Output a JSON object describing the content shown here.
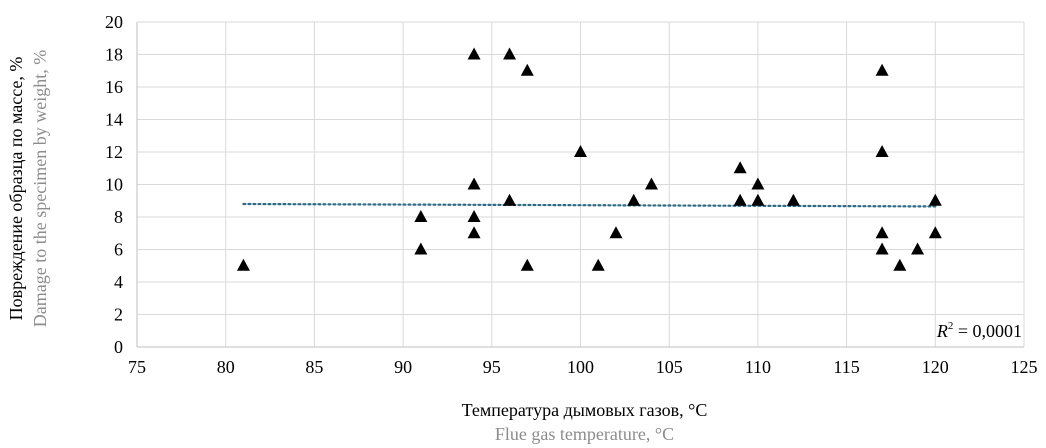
{
  "chart_data": {
    "type": "scatter",
    "x_title_ru": "Температура дымовых газов, °C",
    "x_title_en": "Flue gas temperature, °C",
    "y_title_ru": "Повреждение образца по массе, %",
    "y_title_en": "Damage to the specimen by weight, %",
    "xlim": [
      75,
      125
    ],
    "ylim": [
      0,
      20
    ],
    "x_ticks": [
      75,
      80,
      85,
      90,
      95,
      100,
      105,
      110,
      115,
      120,
      125
    ],
    "y_ticks": [
      0,
      2,
      4,
      6,
      8,
      10,
      12,
      14,
      16,
      18,
      20
    ],
    "grid": true,
    "marker": "triangle",
    "marker_color": "#000000",
    "points": [
      {
        "x": 81,
        "y": 5
      },
      {
        "x": 91,
        "y": 8
      },
      {
        "x": 91,
        "y": 6
      },
      {
        "x": 94,
        "y": 18
      },
      {
        "x": 94,
        "y": 10
      },
      {
        "x": 94,
        "y": 8
      },
      {
        "x": 94,
        "y": 7
      },
      {
        "x": 96,
        "y": 18
      },
      {
        "x": 96,
        "y": 9
      },
      {
        "x": 97,
        "y": 17
      },
      {
        "x": 97,
        "y": 5
      },
      {
        "x": 100,
        "y": 12
      },
      {
        "x": 101,
        "y": 5
      },
      {
        "x": 102,
        "y": 7
      },
      {
        "x": 103,
        "y": 9
      },
      {
        "x": 104,
        "y": 10
      },
      {
        "x": 109,
        "y": 11
      },
      {
        "x": 109,
        "y": 9
      },
      {
        "x": 110,
        "y": 10
      },
      {
        "x": 110,
        "y": 9
      },
      {
        "x": 112,
        "y": 9
      },
      {
        "x": 117,
        "y": 17
      },
      {
        "x": 117,
        "y": 12
      },
      {
        "x": 117,
        "y": 7
      },
      {
        "x": 117,
        "y": 6
      },
      {
        "x": 118,
        "y": 5
      },
      {
        "x": 119,
        "y": 6
      },
      {
        "x": 120,
        "y": 9
      },
      {
        "x": 120,
        "y": 7
      }
    ],
    "trendline": {
      "type": "linear",
      "x_start": 81,
      "y_start": 8.8,
      "x_end": 120,
      "y_end": 8.65,
      "style": "dotted",
      "color": "#2e6a82",
      "r2_label": "R",
      "r2_sup": "2",
      "r2_value": " = 0,0001"
    }
  }
}
